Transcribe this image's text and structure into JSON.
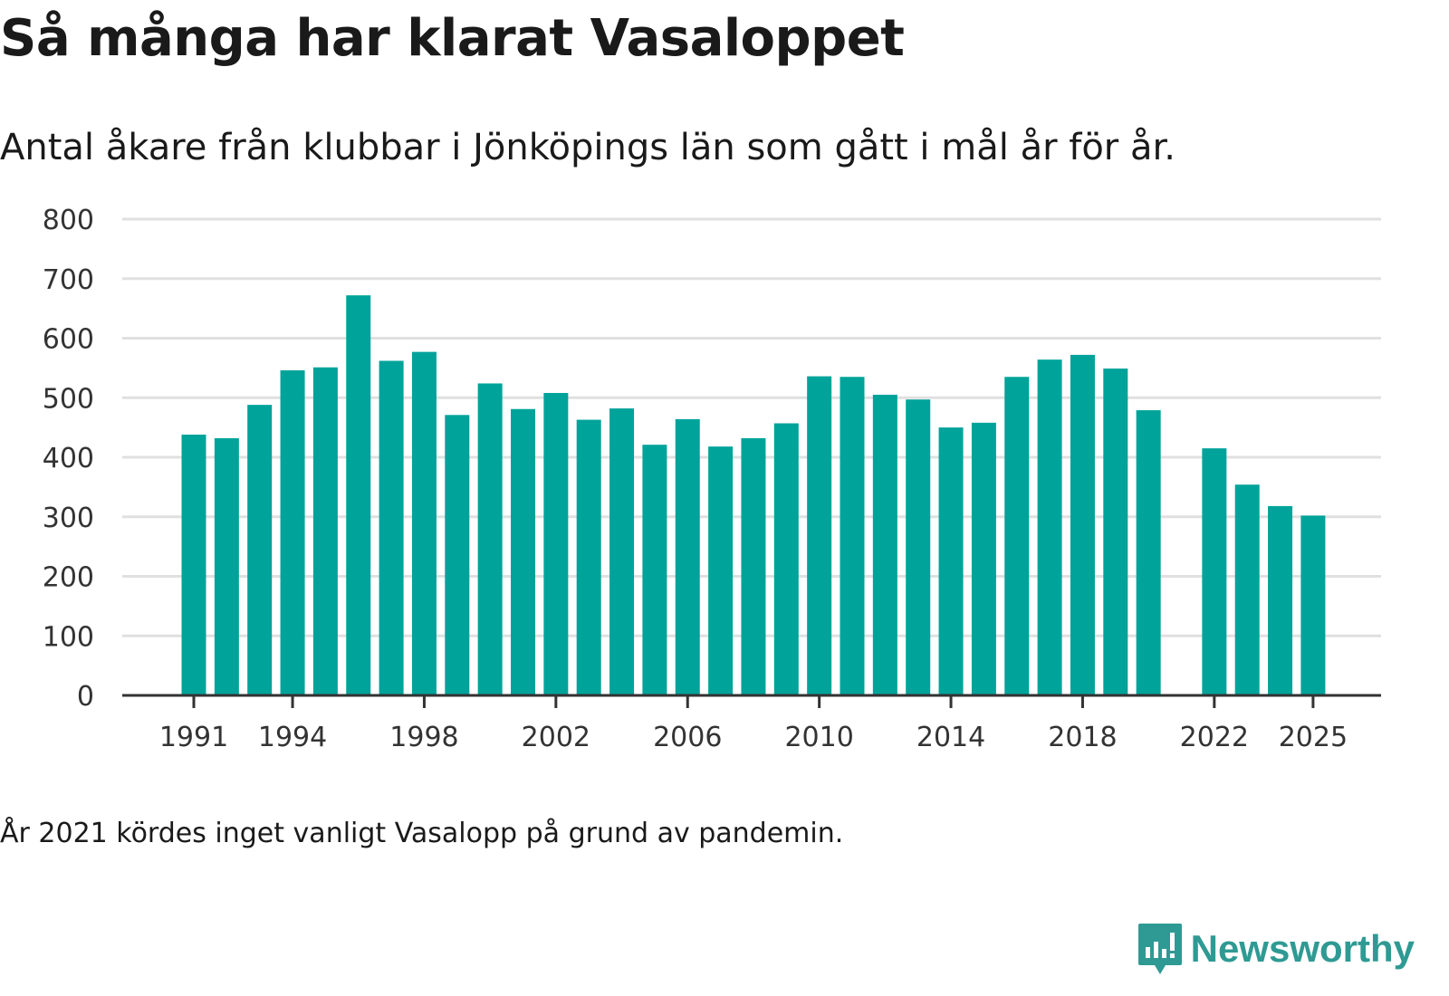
{
  "chart_data": {
    "type": "bar",
    "title": "Så många har klarat Vasaloppet",
    "subtitle": "Antal åkare från klubbar i Jönköpings län som gått i mål år för år.",
    "xlabel": "",
    "ylabel": "",
    "ylim": [
      0,
      800
    ],
    "yticks": [
      0,
      100,
      200,
      300,
      400,
      500,
      600,
      700,
      800
    ],
    "xtick_labels": [
      "1991",
      "1994",
      "1998",
      "2002",
      "2006",
      "2010",
      "2014",
      "2018",
      "2022",
      "2025"
    ],
    "categories": [
      1991,
      1992,
      1993,
      1994,
      1995,
      1996,
      1997,
      1998,
      1999,
      2000,
      2001,
      2002,
      2003,
      2004,
      2005,
      2006,
      2007,
      2008,
      2009,
      2010,
      2011,
      2012,
      2013,
      2014,
      2015,
      2016,
      2017,
      2018,
      2019,
      2020,
      2021,
      2022,
      2023,
      2024,
      2025
    ],
    "values": [
      438,
      432,
      488,
      546,
      551,
      672,
      562,
      577,
      471,
      524,
      481,
      508,
      463,
      482,
      421,
      464,
      418,
      432,
      457,
      536,
      535,
      505,
      497,
      450,
      458,
      535,
      564,
      572,
      549,
      479,
      null,
      415,
      354,
      318,
      302
    ],
    "bar_color": "#00a39a",
    "grid": true,
    "note": "År 2021 kördes inget vanligt Vasalopp på grund av pandemin."
  },
  "brand": {
    "name": "Newsworthy",
    "icon": "newsworthy-logo-icon",
    "color": "#2f9a93"
  }
}
